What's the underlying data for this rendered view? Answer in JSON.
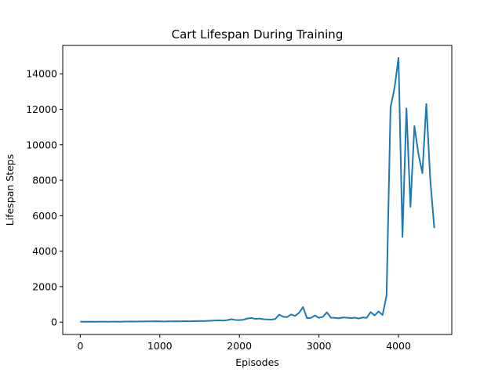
{
  "chart_data": {
    "type": "line",
    "title": "Cart Lifespan During Training",
    "xlabel": "Episodes",
    "ylabel": "Lifespan Steps",
    "xlim": [
      -220,
      4670
    ],
    "ylim": [
      -700,
      15600
    ],
    "xticks": [
      0,
      1000,
      2000,
      3000,
      4000
    ],
    "yticks": [
      0,
      2000,
      4000,
      6000,
      8000,
      10000,
      12000,
      14000
    ],
    "grid": false,
    "legend": "none",
    "series": [
      {
        "color": "#1f77b4",
        "x": [
          0,
          50,
          100,
          150,
          200,
          250,
          300,
          350,
          400,
          450,
          500,
          550,
          600,
          650,
          700,
          750,
          800,
          850,
          900,
          950,
          1000,
          1050,
          1100,
          1150,
          1200,
          1250,
          1300,
          1350,
          1400,
          1450,
          1500,
          1550,
          1600,
          1650,
          1700,
          1750,
          1800,
          1850,
          1900,
          1950,
          2000,
          2050,
          2100,
          2150,
          2200,
          2250,
          2300,
          2350,
          2400,
          2450,
          2500,
          2550,
          2600,
          2650,
          2700,
          2750,
          2800,
          2850,
          2900,
          2950,
          3000,
          3050,
          3100,
          3150,
          3200,
          3250,
          3300,
          3350,
          3400,
          3450,
          3500,
          3550,
          3600,
          3650,
          3700,
          3750,
          3800,
          3850,
          3900,
          3950,
          4000,
          4050,
          4100,
          4150,
          4200,
          4250,
          4300,
          4350,
          4400,
          4450
        ],
        "y": [
          22,
          18,
          20,
          24,
          20,
          22,
          25,
          20,
          22,
          24,
          20,
          26,
          30,
          35,
          30,
          32,
          35,
          40,
          38,
          45,
          40,
          35,
          38,
          42,
          45,
          40,
          50,
          45,
          48,
          55,
          60,
          58,
          70,
          80,
          90,
          95,
          85,
          110,
          160,
          120,
          110,
          130,
          200,
          230,
          180,
          200,
          160,
          150,
          140,
          170,
          420,
          300,
          280,
          430,
          350,
          520,
          850,
          220,
          240,
          370,
          240,
          300,
          550,
          250,
          240,
          210,
          260,
          250,
          220,
          250,
          200,
          260,
          240,
          560,
          380,
          600,
          400,
          1500,
          12100,
          13200,
          14900,
          4800,
          12050,
          6500,
          11050,
          9500,
          8400,
          12300,
          8000,
          5300
        ]
      }
    ]
  }
}
